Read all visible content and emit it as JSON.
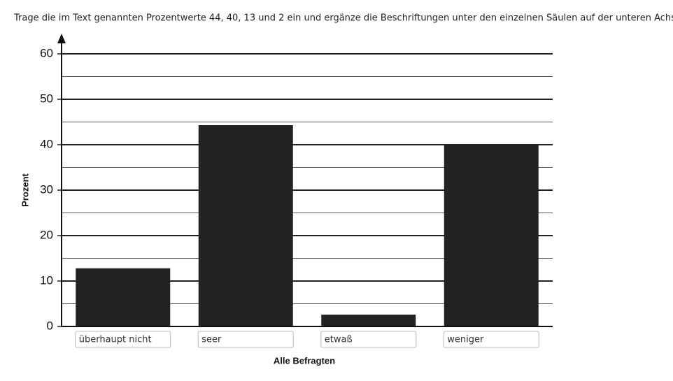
{
  "instruction": "Trage die im Text genannten Prozentwerte 44, 40, 13 und 2 ein und ergänze die Beschriftungen unter den einzelnen Säulen auf der unteren Achse.",
  "chart_data": {
    "type": "bar",
    "y_label": "Prozent",
    "x_label": "Alle Befragten",
    "categories": [
      "überhaupt nicht",
      "seer",
      "etwaß",
      "weniger"
    ],
    "values": [
      12.8,
      44.3,
      2.6,
      40
    ],
    "color": "#222222",
    "ylim": [
      0,
      60
    ],
    "yticks": [
      0,
      10,
      20,
      30,
      40,
      50,
      60
    ],
    "minor_yticks": [
      5,
      15,
      25,
      35,
      45,
      55
    ],
    "grid": true
  }
}
